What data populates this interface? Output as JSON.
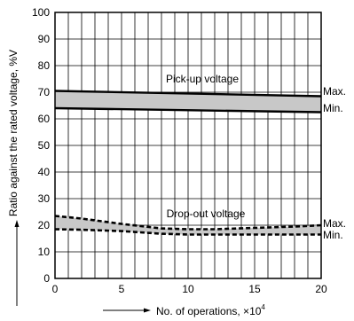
{
  "chart_data": {
    "type": "line",
    "xlabel": "No. of operations, ×10",
    "xlabel_exponent": "4",
    "ylabel": "Ratio against the rated voltage, %V",
    "xlim": [
      0,
      20
    ],
    "ylim": [
      0,
      100
    ],
    "x_ticks": [
      "0",
      "5",
      "10",
      "15",
      "20"
    ],
    "y_ticks": [
      "0",
      "10",
      "20",
      "30",
      "40",
      "50",
      "60",
      "70",
      "80",
      "90",
      "100"
    ],
    "grid": true,
    "annotations": [
      "Pick-up voltage",
      "Drop-out voltage",
      "Max.",
      "Min.",
      "Max.",
      "Min."
    ],
    "bands": [
      {
        "name": "Pick-up voltage",
        "style": "solid",
        "fill": "#c8c8c8",
        "max": {
          "x": [
            0,
            20
          ],
          "y": [
            70.5,
            68.5
          ]
        },
        "min": {
          "x": [
            0,
            20
          ],
          "y": [
            64,
            62.5
          ]
        }
      },
      {
        "name": "Drop-out voltage",
        "style": "dashed",
        "fill": "#c8c8c8",
        "max": {
          "x": [
            0,
            2,
            5,
            8,
            10,
            12,
            15,
            18,
            20
          ],
          "y": [
            23.5,
            22.5,
            20.5,
            18.8,
            18.5,
            18.5,
            19,
            19.5,
            20
          ]
        },
        "min": {
          "x": [
            0,
            2,
            5,
            8,
            10,
            12,
            15,
            18,
            20
          ],
          "y": [
            18.5,
            18.3,
            17.8,
            16.8,
            16.5,
            16.5,
            16.5,
            16.5,
            16.5
          ]
        }
      }
    ]
  }
}
